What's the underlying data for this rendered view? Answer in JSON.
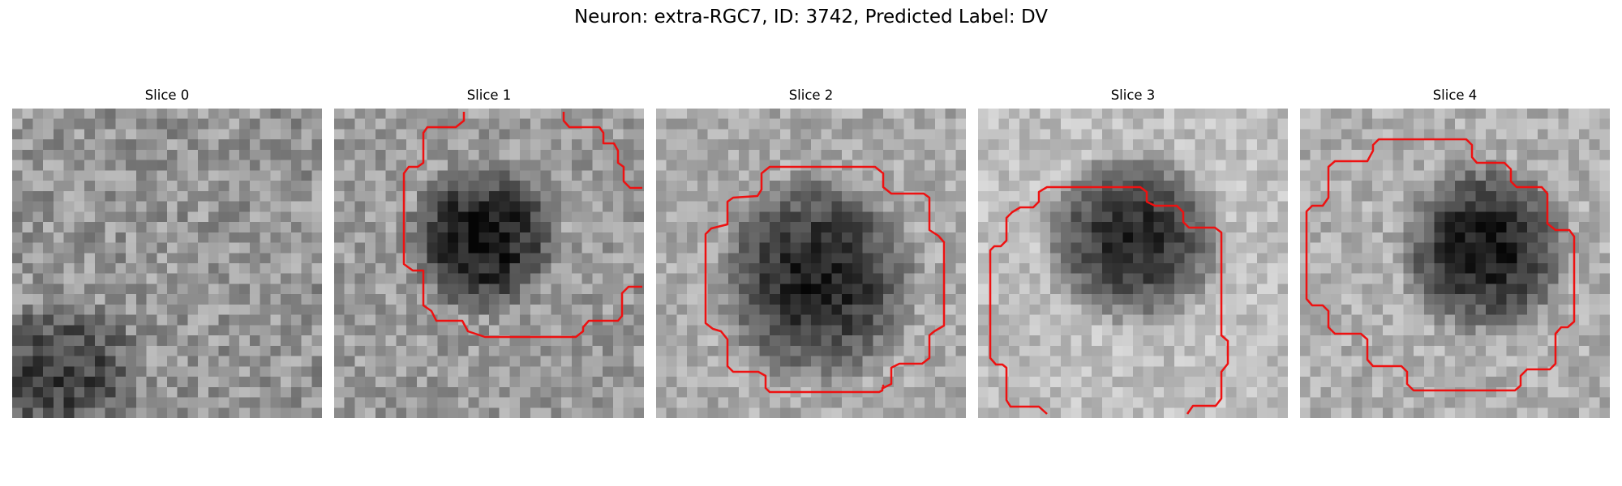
{
  "figure": {
    "title": "Neuron: extra-RGC7, ID: 3742, Predicted Label: DV",
    "contour_color": "#ee1111"
  },
  "panels": [
    {
      "title": "Slice 0",
      "has_contour": false
    },
    {
      "title": "Slice 1",
      "has_contour": true
    },
    {
      "title": "Slice 2",
      "has_contour": true
    },
    {
      "title": "Slice 3",
      "has_contour": true
    },
    {
      "title": "Slice 4",
      "has_contour": true
    }
  ]
}
